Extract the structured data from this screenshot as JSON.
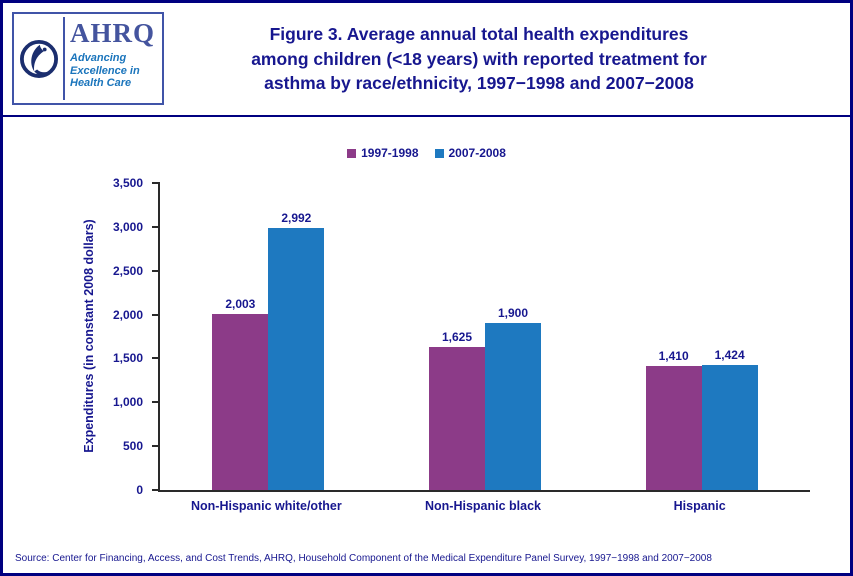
{
  "header": {
    "logo": {
      "org": "AHRQ",
      "tagline_lines": [
        "Advancing",
        "Excellence in",
        "Health Care"
      ]
    },
    "title_lines": [
      "Figure 3. Average annual total health expenditures",
      "among children (<18 years) with reported treatment for",
      "asthma by race/ethnicity, 1997−1998 and 2007−2008"
    ]
  },
  "chart_data": {
    "type": "bar",
    "title": "Figure 3. Average annual total health expenditures among children (<18 years) with reported treatment for asthma by race/ethnicity, 1997−1998 and 2007−2008",
    "categories": [
      "Non-Hispanic white/other",
      "Non-Hispanic black",
      "Hispanic"
    ],
    "series": [
      {
        "name": "1997-1998",
        "color": "#8C3B88",
        "values": [
          2003,
          1625,
          1410
        ],
        "labels": [
          "2,003",
          "1,625",
          "1,410"
        ]
      },
      {
        "name": "2007-2008",
        "color": "#1E79C0",
        "values": [
          2992,
          1900,
          1424
        ],
        "labels": [
          "2,992",
          "1,900",
          "1,424"
        ]
      }
    ],
    "xlabel": "",
    "ylabel": "Expenditures (in constant 2008 dollars)",
    "ylim": [
      0,
      3500
    ],
    "ytick_step": 500,
    "yticks": [
      "0",
      "500",
      "1,000",
      "1,500",
      "2,000",
      "2,500",
      "3,000",
      "3,500"
    ],
    "grid": false,
    "legend_position": "top"
  },
  "footer": {
    "source": "Source: Center for Financing, Access, and Cost Trends, AHRQ, Household Component of the Medical Expenditure Panel Survey, 1997−1998 and 2007−2008"
  },
  "colors": {
    "border_navy": "#000080",
    "text_navy": "#17178F",
    "ahrq_blue": "#1B75BC",
    "series_1997_1998": "#8C3B88",
    "series_2007_2008": "#1E79C0"
  }
}
